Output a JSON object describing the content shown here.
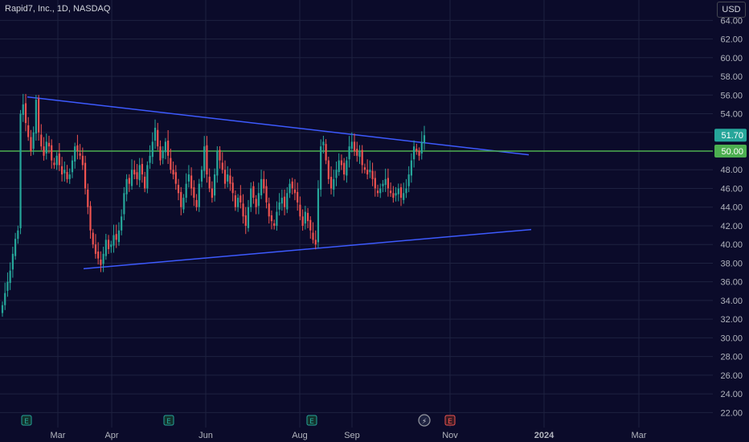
{
  "header": {
    "title": "Rapid7, Inc., 1D, NASDAQ",
    "currency": "USD"
  },
  "chart_data": {
    "type": "candlestick",
    "x_tick_labels": [
      "Mar",
      "Apr",
      "Jun",
      "Aug",
      "Sep",
      "Nov",
      "2024",
      "Mar"
    ],
    "y_tick_labels": [
      "22.00",
      "24.00",
      "26.00",
      "28.00",
      "30.00",
      "32.00",
      "34.00",
      "36.00",
      "38.00",
      "40.00",
      "42.00",
      "44.00",
      "46.00",
      "48.00",
      "50.00",
      "52.00",
      "54.00",
      "56.00",
      "58.00",
      "60.00",
      "62.00",
      "64.00"
    ],
    "ylim": [
      21,
      65
    ],
    "grid": true,
    "price_labels": {
      "last": "51.70",
      "level": "50.00"
    },
    "horizontal_line": {
      "value": 50.0,
      "color": "#4caf50"
    },
    "trendlines": [
      {
        "name": "upper",
        "from": [
          "Jan 2023",
          55.8
        ],
        "to": [
          "Dec 2023",
          49.6
        ],
        "color": "#3d5afe"
      },
      {
        "name": "lower",
        "from": [
          "Mar 2023",
          37.4
        ],
        "to": [
          "Dec 2023",
          41.6
        ],
        "color": "#3d5afe"
      }
    ],
    "event_markers": [
      "E",
      "E",
      "E",
      "⚡",
      "E"
    ],
    "closes": [
      33.5,
      34.8,
      36.0,
      37.2,
      39.0,
      40.6,
      41.5,
      54.0,
      55.0,
      53.0,
      51.5,
      50.0,
      52.0,
      55.5,
      52.0,
      50.5,
      49.5,
      51.0,
      50.5,
      49.0,
      48.5,
      49.5,
      48.5,
      47.5,
      48.0,
      47.0,
      47.5,
      49.0,
      50.5,
      50.0,
      49.5,
      48.5,
      46.0,
      44.0,
      41.5,
      40.0,
      39.0,
      38.5,
      37.8,
      39.0,
      40.5,
      39.5,
      40.0,
      41.0,
      40.5,
      41.5,
      43.0,
      45.5,
      47.0,
      46.5,
      48.0,
      47.5,
      47.0,
      48.5,
      47.5,
      46.0,
      48.5,
      49.5,
      51.0,
      52.5,
      50.5,
      49.0,
      50.0,
      51.0,
      49.5,
      48.0,
      47.5,
      46.5,
      45.5,
      44.0,
      45.0,
      46.5,
      47.5,
      46.0,
      45.0,
      44.0,
      46.5,
      48.0,
      50.5,
      47.5,
      46.0,
      45.0,
      47.5,
      50.0,
      49.0,
      48.0,
      46.5,
      47.5,
      46.5,
      45.5,
      44.0,
      45.0,
      44.5,
      43.0,
      42.0,
      44.0,
      46.0,
      45.0,
      44.0,
      45.5,
      47.0,
      46.0,
      44.5,
      43.0,
      42.5,
      42.0,
      43.5,
      44.5,
      45.0,
      44.0,
      45.5,
      46.5,
      46.0,
      45.5,
      44.5,
      43.0,
      42.0,
      43.5,
      42.5,
      41.5,
      40.5,
      40.0,
      46.0,
      50.5,
      51.0,
      49.0,
      47.0,
      46.0,
      47.0,
      48.0,
      49.0,
      48.5,
      47.5,
      49.0,
      50.5,
      51.0,
      50.0,
      49.5,
      50.0,
      48.5,
      48.0,
      47.5,
      48.0,
      47.0,
      46.0,
      45.5,
      46.0,
      46.5,
      47.0,
      46.0,
      45.5,
      45.0,
      45.5,
      46.0,
      45.0,
      45.5,
      46.0,
      47.5,
      49.0,
      50.5,
      50.0,
      49.5,
      51.0,
      51.7
    ]
  }
}
